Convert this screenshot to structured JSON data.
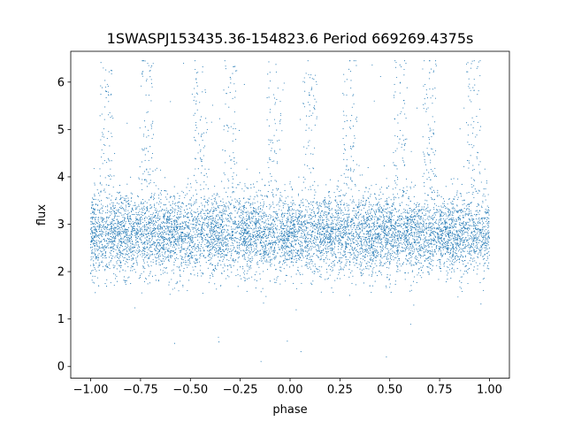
{
  "chart_data": {
    "type": "scatter",
    "title": "1SWASPJ153435.36-154823.6 Period 669269.4375s",
    "xlabel": "phase",
    "ylabel": "flux",
    "xlim": [
      -1.1,
      1.1
    ],
    "ylim": [
      -0.25,
      6.65
    ],
    "x_ticks": [
      -1.0,
      -0.75,
      -0.5,
      -0.25,
      0.0,
      0.25,
      0.5,
      0.75,
      1.0
    ],
    "x_tick_labels": [
      "−1.00",
      "−0.75",
      "−0.50",
      "−0.25",
      "0.00",
      "0.25",
      "0.50",
      "0.75",
      "1.00"
    ],
    "y_ticks": [
      0,
      1,
      2,
      3,
      4,
      5,
      6
    ],
    "y_tick_labels": [
      "0",
      "1",
      "2",
      "3",
      "4",
      "5",
      "6"
    ],
    "grid": false,
    "legend": "none",
    "series": [
      {
        "color": "#1f77b4",
        "marker_size": "very small",
        "x_range": [
          -1.0,
          1.0
        ],
        "typical_flux_band": [
          1.6,
          3.8
        ],
        "median_flux": 2.8,
        "points": [
          [
            -1.0,
            2.8
          ],
          [
            -0.98,
            3.6
          ],
          [
            -0.96,
            1.7
          ],
          [
            -0.94,
            2.5
          ],
          [
            -0.92,
            5.8
          ],
          [
            -0.9,
            3.0
          ],
          [
            -0.85,
            2.2
          ],
          [
            -0.8,
            2.6
          ],
          [
            -0.75,
            3.1
          ],
          [
            -0.72,
            4.6
          ],
          [
            -0.7,
            2.0
          ],
          [
            -0.65,
            2.9
          ],
          [
            -0.6,
            3.3
          ],
          [
            -0.55,
            1.9
          ],
          [
            -0.5,
            2.7
          ],
          [
            -0.45,
            5.2
          ],
          [
            -0.4,
            2.4
          ],
          [
            -0.35,
            3.0
          ],
          [
            -0.3,
            6.1
          ],
          [
            -0.28,
            4.4
          ],
          [
            -0.25,
            2.1
          ],
          [
            -0.2,
            3.4
          ],
          [
            -0.15,
            2.6
          ],
          [
            -0.1,
            1.8
          ],
          [
            -0.05,
            3.5
          ],
          [
            0.0,
            2.8
          ],
          [
            0.05,
            2.3
          ],
          [
            0.1,
            3.2
          ],
          [
            0.15,
            1.9
          ],
          [
            0.2,
            2.7
          ],
          [
            0.25,
            3.6
          ],
          [
            0.3,
            2.2
          ],
          [
            0.35,
            2.9
          ],
          [
            0.4,
            1.7
          ],
          [
            0.45,
            3.1
          ],
          [
            0.5,
            2.6
          ],
          [
            0.55,
            4.8
          ],
          [
            0.6,
            2.4
          ],
          [
            0.65,
            3.3
          ],
          [
            0.7,
            6.2
          ],
          [
            0.72,
            4.9
          ],
          [
            0.75,
            2.1
          ],
          [
            0.8,
            3.0
          ],
          [
            0.85,
            1.8
          ],
          [
            0.9,
            2.9
          ],
          [
            0.95,
            3.7
          ],
          [
            1.0,
            2.5
          ]
        ]
      }
    ]
  }
}
